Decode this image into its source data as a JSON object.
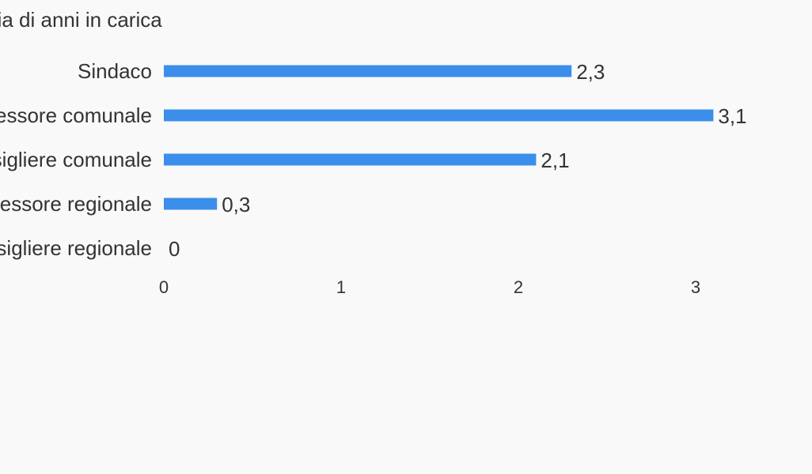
{
  "chart_data": {
    "type": "bar",
    "orientation": "horizontal",
    "title": "Media di anni in carica",
    "categories": [
      "Sindaco",
      "Assessore comunale",
      "Consigliere comunale",
      "Assessore regionale",
      "Consigliere regionale"
    ],
    "value_labels": [
      "2,3",
      "3,1",
      "2,1",
      "0,3",
      "0"
    ],
    "values": [
      2.3,
      3.1,
      2.1,
      0.3,
      0
    ],
    "xlim": [
      0,
      3.3
    ],
    "x_ticks": [
      {
        "value": 0,
        "label": "0"
      },
      {
        "value": 1,
        "label": "1"
      },
      {
        "value": 2,
        "label": "2"
      },
      {
        "value": 3,
        "label": "3"
      }
    ],
    "grid": false,
    "legend": "none",
    "colors": {
      "bar": "#3b8eea",
      "text": "#333333",
      "background": "#f9f9f9"
    }
  }
}
